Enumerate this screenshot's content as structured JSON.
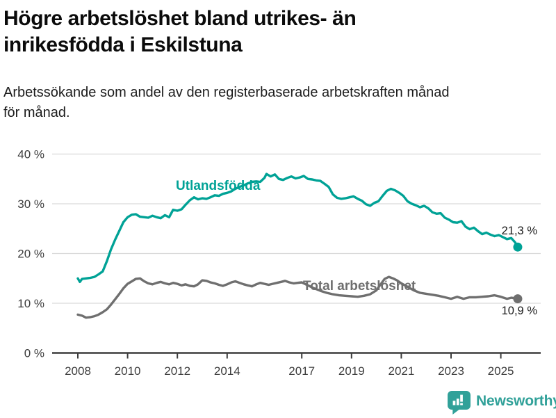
{
  "header": {
    "title_lines": [
      "Högre arbetslöshet bland utrikes- än",
      "inrikesfödda i Eskilstuna"
    ],
    "subtitle_lines": [
      "Arbetssökande som andel av den registerbaserade arbetskraften månad",
      "för månad."
    ]
  },
  "chart_data": {
    "type": "line",
    "title": "Högre arbetslöshet bland utrikes- än inrikesfödda i Eskilstuna",
    "subtitle": "Arbetssökande som andel av den registerbaserade arbetskraften månad för månad.",
    "unit": "%",
    "grid": "horizontal",
    "legend_position": "inline-labels",
    "x_axis": {
      "ticks": [
        2008,
        2010,
        2012,
        2014,
        2017,
        2019,
        2021,
        2023,
        2025
      ],
      "range": [
        2007,
        2026.6
      ]
    },
    "y_axis": {
      "tick_values": [
        0,
        10,
        20,
        30,
        40
      ],
      "tick_labels": [
        "0 %",
        "10 %",
        "20 %",
        "30 %",
        "40 %"
      ],
      "range": [
        0,
        42
      ]
    },
    "series": [
      {
        "name": "Utlandsfödda",
        "color": "#00a296",
        "end_value": 21.3,
        "end_label": "21,3 %",
        "points": [
          [
            2008,
            15.0
          ],
          [
            2008.08,
            14.3
          ],
          [
            2008.17,
            14.9
          ],
          [
            2008.33,
            15.0
          ],
          [
            2008.5,
            15.1
          ],
          [
            2008.67,
            15.3
          ],
          [
            2008.83,
            15.8
          ],
          [
            2009,
            16.4
          ],
          [
            2009.17,
            18.5
          ],
          [
            2009.33,
            20.8
          ],
          [
            2009.5,
            22.8
          ],
          [
            2009.67,
            24.6
          ],
          [
            2009.83,
            26.3
          ],
          [
            2010,
            27.3
          ],
          [
            2010.17,
            27.8
          ],
          [
            2010.33,
            27.9
          ],
          [
            2010.5,
            27.4
          ],
          [
            2010.67,
            27.3
          ],
          [
            2010.83,
            27.2
          ],
          [
            2011,
            27.6
          ],
          [
            2011.17,
            27.3
          ],
          [
            2011.33,
            27.1
          ],
          [
            2011.5,
            27.7
          ],
          [
            2011.67,
            27.3
          ],
          [
            2011.83,
            28.8
          ],
          [
            2012,
            28.6
          ],
          [
            2012.17,
            28.9
          ],
          [
            2012.33,
            29.8
          ],
          [
            2012.5,
            30.7
          ],
          [
            2012.67,
            31.3
          ],
          [
            2012.83,
            30.9
          ],
          [
            2013,
            31.1
          ],
          [
            2013.17,
            31.0
          ],
          [
            2013.33,
            31.3
          ],
          [
            2013.5,
            31.7
          ],
          [
            2013.67,
            31.6
          ],
          [
            2013.83,
            32.0
          ],
          [
            2014,
            32.2
          ],
          [
            2014.17,
            32.5
          ],
          [
            2014.33,
            33.0
          ],
          [
            2014.5,
            33.4
          ],
          [
            2014.67,
            33.7
          ],
          [
            2014.83,
            34.1
          ],
          [
            2015,
            34.4
          ],
          [
            2015.17,
            34.5
          ],
          [
            2015.33,
            34.4
          ],
          [
            2015.5,
            35.2
          ],
          [
            2015.58,
            36.0
          ],
          [
            2015.75,
            35.5
          ],
          [
            2015.92,
            35.9
          ],
          [
            2016.08,
            35.0
          ],
          [
            2016.25,
            34.8
          ],
          [
            2016.42,
            35.2
          ],
          [
            2016.58,
            35.5
          ],
          [
            2016.75,
            35.1
          ],
          [
            2016.92,
            35.3
          ],
          [
            2017.08,
            35.6
          ],
          [
            2017.25,
            35.0
          ],
          [
            2017.42,
            34.9
          ],
          [
            2017.58,
            34.7
          ],
          [
            2017.75,
            34.6
          ],
          [
            2017.92,
            34.0
          ],
          [
            2018.08,
            33.4
          ],
          [
            2018.25,
            31.9
          ],
          [
            2018.42,
            31.2
          ],
          [
            2018.58,
            31.0
          ],
          [
            2018.75,
            31.1
          ],
          [
            2018.92,
            31.3
          ],
          [
            2019.08,
            31.5
          ],
          [
            2019.25,
            31.0
          ],
          [
            2019.42,
            30.6
          ],
          [
            2019.58,
            29.9
          ],
          [
            2019.75,
            29.6
          ],
          [
            2019.92,
            30.2
          ],
          [
            2020.08,
            30.5
          ],
          [
            2020.25,
            31.6
          ],
          [
            2020.42,
            32.6
          ],
          [
            2020.58,
            33.0
          ],
          [
            2020.75,
            32.7
          ],
          [
            2020.92,
            32.2
          ],
          [
            2021.08,
            31.6
          ],
          [
            2021.25,
            30.5
          ],
          [
            2021.42,
            30.0
          ],
          [
            2021.58,
            29.7
          ],
          [
            2021.75,
            29.3
          ],
          [
            2021.92,
            29.6
          ],
          [
            2022.08,
            29.1
          ],
          [
            2022.25,
            28.3
          ],
          [
            2022.42,
            28.0
          ],
          [
            2022.58,
            28.1
          ],
          [
            2022.75,
            27.2
          ],
          [
            2022.92,
            26.8
          ],
          [
            2023.08,
            26.3
          ],
          [
            2023.25,
            26.2
          ],
          [
            2023.42,
            26.5
          ],
          [
            2023.58,
            25.4
          ],
          [
            2023.75,
            24.9
          ],
          [
            2023.92,
            25.2
          ],
          [
            2024.08,
            24.5
          ],
          [
            2024.25,
            23.9
          ],
          [
            2024.42,
            24.2
          ],
          [
            2024.58,
            23.8
          ],
          [
            2024.75,
            23.5
          ],
          [
            2024.92,
            23.7
          ],
          [
            2025.08,
            23.3
          ],
          [
            2025.25,
            22.9
          ],
          [
            2025.42,
            23.1
          ],
          [
            2025.58,
            22.2
          ],
          [
            2025.68,
            21.3
          ]
        ]
      },
      {
        "name": "Total arbetslöshet",
        "color": "#6f6f6f",
        "end_value": 10.9,
        "end_label": "10,9 %",
        "points": [
          [
            2008,
            7.7
          ],
          [
            2008.17,
            7.5
          ],
          [
            2008.33,
            7.1
          ],
          [
            2008.5,
            7.2
          ],
          [
            2008.67,
            7.4
          ],
          [
            2008.83,
            7.7
          ],
          [
            2009,
            8.2
          ],
          [
            2009.17,
            8.8
          ],
          [
            2009.33,
            9.7
          ],
          [
            2009.5,
            10.8
          ],
          [
            2009.67,
            11.9
          ],
          [
            2009.83,
            13.0
          ],
          [
            2010,
            13.9
          ],
          [
            2010.17,
            14.4
          ],
          [
            2010.33,
            14.9
          ],
          [
            2010.5,
            15.0
          ],
          [
            2010.67,
            14.4
          ],
          [
            2010.83,
            14.0
          ],
          [
            2011,
            13.8
          ],
          [
            2011.17,
            14.1
          ],
          [
            2011.33,
            14.3
          ],
          [
            2011.5,
            14.0
          ],
          [
            2011.67,
            13.8
          ],
          [
            2011.83,
            14.1
          ],
          [
            2012,
            13.9
          ],
          [
            2012.17,
            13.6
          ],
          [
            2012.33,
            13.8
          ],
          [
            2012.5,
            13.5
          ],
          [
            2012.67,
            13.4
          ],
          [
            2012.83,
            13.8
          ],
          [
            2013,
            14.6
          ],
          [
            2013.17,
            14.5
          ],
          [
            2013.33,
            14.2
          ],
          [
            2013.5,
            14.0
          ],
          [
            2013.67,
            13.7
          ],
          [
            2013.83,
            13.5
          ],
          [
            2014,
            13.8
          ],
          [
            2014.17,
            14.2
          ],
          [
            2014.33,
            14.4
          ],
          [
            2014.5,
            14.1
          ],
          [
            2014.67,
            13.8
          ],
          [
            2014.83,
            13.6
          ],
          [
            2015,
            13.4
          ],
          [
            2015.17,
            13.8
          ],
          [
            2015.33,
            14.1
          ],
          [
            2015.5,
            13.9
          ],
          [
            2015.67,
            13.7
          ],
          [
            2015.83,
            13.9
          ],
          [
            2016,
            14.1
          ],
          [
            2016.17,
            14.3
          ],
          [
            2016.33,
            14.5
          ],
          [
            2016.5,
            14.2
          ],
          [
            2016.67,
            14.0
          ],
          [
            2016.83,
            14.1
          ],
          [
            2017,
            14.2
          ],
          [
            2017.25,
            13.6
          ],
          [
            2017.5,
            13.0
          ],
          [
            2017.75,
            12.5
          ],
          [
            2018,
            12.1
          ],
          [
            2018.25,
            11.8
          ],
          [
            2018.5,
            11.6
          ],
          [
            2018.75,
            11.5
          ],
          [
            2019,
            11.4
          ],
          [
            2019.25,
            11.3
          ],
          [
            2019.5,
            11.5
          ],
          [
            2019.75,
            11.8
          ],
          [
            2020,
            12.6
          ],
          [
            2020.17,
            13.8
          ],
          [
            2020.33,
            14.9
          ],
          [
            2020.5,
            15.3
          ],
          [
            2020.67,
            15.0
          ],
          [
            2020.83,
            14.6
          ],
          [
            2021,
            14.0
          ],
          [
            2021.25,
            13.3
          ],
          [
            2021.5,
            12.6
          ],
          [
            2021.75,
            12.1
          ],
          [
            2022,
            11.9
          ],
          [
            2022.25,
            11.7
          ],
          [
            2022.5,
            11.5
          ],
          [
            2022.75,
            11.2
          ],
          [
            2023,
            10.9
          ],
          [
            2023.25,
            11.3
          ],
          [
            2023.5,
            10.9
          ],
          [
            2023.75,
            11.2
          ],
          [
            2024,
            11.2
          ],
          [
            2024.25,
            11.3
          ],
          [
            2024.5,
            11.4
          ],
          [
            2024.75,
            11.6
          ],
          [
            2025,
            11.3
          ],
          [
            2025.25,
            10.9
          ],
          [
            2025.42,
            11.1
          ],
          [
            2025.68,
            10.9
          ]
        ]
      }
    ]
  },
  "branding": {
    "name": "Newsworthy",
    "color": "#31a199",
    "icon": "bar-chart-speech-bubble-icon"
  },
  "style_colors": {
    "grid": "#d9d9d9",
    "axis": "#3c3c3c",
    "tick_label": "#3d3d3d",
    "title": "#0b0b0b",
    "annotation": "#1a1a1a"
  }
}
